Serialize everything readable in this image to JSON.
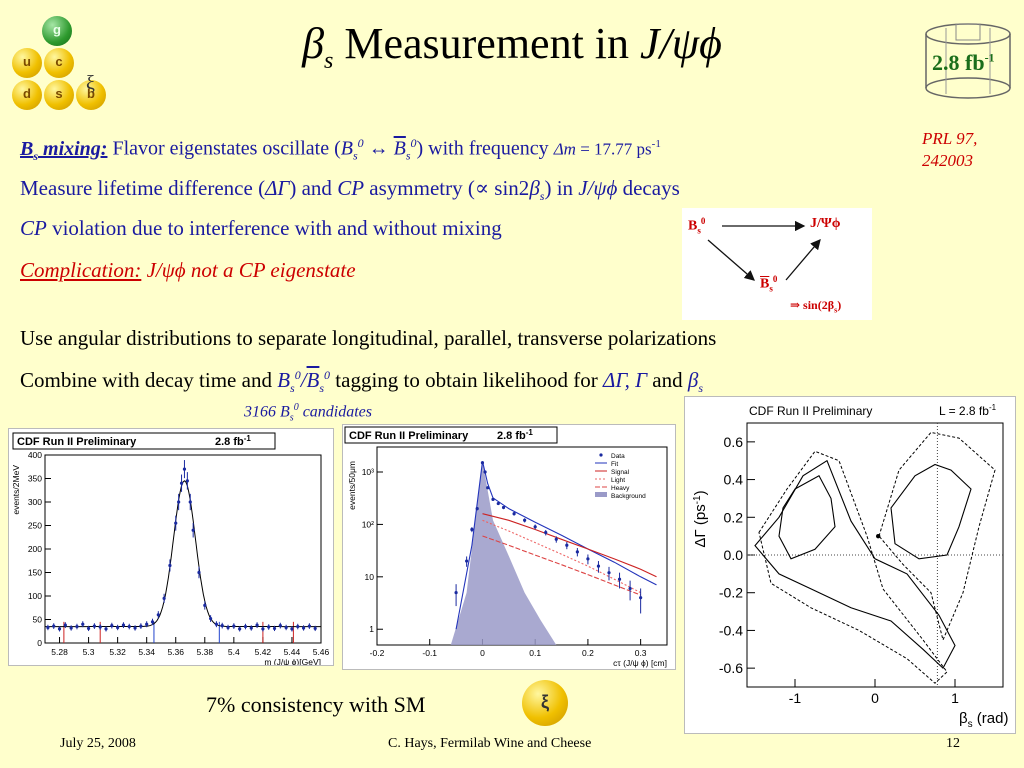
{
  "header": {
    "title_beta": "β",
    "title_sub": "s",
    "title_mid": " Measurement in ",
    "title_decay": "J/ψϕ",
    "lumi_badge": "2.8 fb",
    "lumi_sup": "-1"
  },
  "logo": {
    "quarks": [
      "g",
      "u",
      "c",
      "d",
      "s",
      "b"
    ],
    "squiggle": "ξ"
  },
  "reference": {
    "line1": "PRL 97,",
    "line2": "242003"
  },
  "bullets": {
    "b1_label": "B",
    "b1_label_sub": "s",
    "b1_label_tail": " mixing:",
    "b1_text_a": " Flavor eigenstates oscillate (",
    "b1_bs": "B",
    "b1_bs_sub": "s",
    "b1_bs_sup": "0",
    "b1_arrow": " ↔ ",
    "b1_bsbar": "B",
    "b1_bsbar_sub": "s",
    "b1_bsbar_sup": "0",
    "b1_text_b": ") with frequency ",
    "b1_dm": "Δm",
    "b1_value": " = 17.77 ps",
    "b1_value_sup": "-1",
    "b2_a": "Measure lifetime difference (",
    "b2_dg": "ΔΓ",
    "b2_b": ") and ",
    "b2_cp": "CP",
    "b2_c": " asymmetry (∝ sin2",
    "b2_beta": "β",
    "b2_beta_sub": "s",
    "b2_d": ") in ",
    "b2_decay": "J/ψϕ",
    "b2_e": " decays",
    "b3_cp": "CP",
    "b3_text": " violation due to interference with and without mixing",
    "b4_label": "Complication:",
    "b4_text": " J/ψϕ not a CP eigenstate",
    "b5": "Use angular distributions to separate longitudinal, parallel, transverse polarizations",
    "b6_a": "Combine with decay time and ",
    "b6_bs": "B",
    "b6_bs_sub": "s",
    "b6_bs_sup": "0",
    "b6_slash": "/",
    "b6_bsbar": "B",
    "b6_bsbar_sub": "s",
    "b6_bsbar_sup": "0",
    "b6_b": " tagging to obtain likelihood for ",
    "b6_params": "ΔΓ, Γ",
    "b6_and": " and ",
    "b6_beta": "β",
    "b6_beta_sub": "s",
    "candidates": "3166 B",
    "candidates_sub": "s",
    "candidates_sup": "0",
    "candidates_tail": " candidates"
  },
  "diagram": {
    "bs": "B",
    "bs_sub": "s",
    "bs_sup": "0",
    "jpsiphi": "J/Ψϕ",
    "bsbar": "B",
    "bsbar_sub": "s",
    "bsbar_sup": "0",
    "implies": "⇒ sin(2β",
    "implies_sub": "s",
    "implies_tail": ")"
  },
  "chart_data": [
    {
      "type": "scatter",
      "title": "CDF Run II Preliminary",
      "lumi": "2.8 fb",
      "lumi_sup": "-1",
      "xlabel": "m (J/ψ ϕ)[GeV]",
      "ylabel": "events/2MeV",
      "xlim": [
        5.27,
        5.46
      ],
      "ylim": [
        0,
        400
      ],
      "xticks": [
        "5.28",
        "5.3",
        "5.32",
        "5.34",
        "5.36",
        "5.38",
        "5.4",
        "5.42",
        "5.44",
        "5.46"
      ],
      "yticks": [
        "0",
        "50",
        "100",
        "150",
        "200",
        "250",
        "300",
        "350",
        "400"
      ],
      "fit": {
        "peak_mass": 5.366,
        "peak_height": 345,
        "background": 35
      },
      "sideband_lines": [
        5.283,
        5.308,
        5.345,
        5.39,
        5.42,
        5.441
      ],
      "x": [
        5.272,
        5.276,
        5.28,
        5.284,
        5.288,
        5.292,
        5.296,
        5.3,
        5.304,
        5.308,
        5.312,
        5.316,
        5.32,
        5.324,
        5.328,
        5.332,
        5.336,
        5.34,
        5.344,
        5.348,
        5.352,
        5.356,
        5.36,
        5.362,
        5.364,
        5.366,
        5.368,
        5.37,
        5.372,
        5.376,
        5.38,
        5.384,
        5.388,
        5.392,
        5.396,
        5.4,
        5.404,
        5.408,
        5.412,
        5.416,
        5.42,
        5.424,
        5.428,
        5.432,
        5.436,
        5.44,
        5.444,
        5.448,
        5.452,
        5.456
      ],
      "y": [
        33,
        36,
        30,
        38,
        32,
        35,
        40,
        31,
        36,
        34,
        30,
        37,
        33,
        38,
        35,
        32,
        36,
        40,
        45,
        60,
        95,
        165,
        255,
        300,
        340,
        370,
        345,
        300,
        240,
        150,
        80,
        52,
        40,
        37,
        33,
        36,
        30,
        35,
        32,
        38,
        30,
        34,
        31,
        37,
        33,
        30,
        35,
        32,
        36,
        31
      ]
    },
    {
      "type": "line",
      "title": "CDF Run II Preliminary",
      "lumi": "2.8 fb",
      "lumi_sup": "-1",
      "xlabel": "cτ (J/ψ ϕ) [cm]",
      "ylabel": "events/50μm",
      "log_y": true,
      "xlim": [
        -0.2,
        0.35
      ],
      "ylim": [
        0.5,
        3000
      ],
      "xticks": [
        "-0.2",
        "-0.1",
        "0",
        "0.1",
        "0.2",
        "0.3"
      ],
      "yticks": [
        "1",
        "10",
        "10²",
        "10³"
      ],
      "legend": [
        "Data",
        "Fit",
        "Signal",
        "Light",
        "Heavy",
        "Background"
      ],
      "series": [
        {
          "name": "Data",
          "x": [
            -0.05,
            -0.03,
            -0.02,
            -0.01,
            0,
            0.005,
            0.01,
            0.02,
            0.03,
            0.04,
            0.06,
            0.08,
            0.1,
            0.12,
            0.14,
            0.16,
            0.18,
            0.2,
            0.22,
            0.24,
            0.26,
            0.28,
            0.3
          ],
          "y": [
            5,
            20,
            80,
            200,
            1500,
            1000,
            500,
            300,
            250,
            210,
            160,
            120,
            90,
            70,
            52,
            40,
            30,
            22,
            16,
            12,
            9,
            6,
            4
          ]
        },
        {
          "name": "Fit",
          "x": [
            -0.05,
            -0.02,
            0,
            0.01,
            0.02,
            0.05,
            0.1,
            0.15,
            0.2,
            0.25,
            0.3,
            0.33
          ],
          "y": [
            1,
            40,
            1600,
            600,
            320,
            200,
            110,
            62,
            34,
            19,
            10,
            7
          ]
        },
        {
          "name": "Signal",
          "x": [
            0,
            0.05,
            0.1,
            0.15,
            0.2,
            0.25,
            0.3,
            0.33
          ],
          "y": [
            160,
            120,
            80,
            52,
            34,
            22,
            14,
            10
          ]
        },
        {
          "name": "Light",
          "x": [
            0,
            0.05,
            0.1,
            0.15,
            0.2,
            0.25,
            0.3
          ],
          "y": [
            120,
            75,
            45,
            27,
            16,
            9,
            5
          ]
        },
        {
          "name": "Heavy",
          "x": [
            0,
            0.05,
            0.1,
            0.15,
            0.2,
            0.25,
            0.3
          ],
          "y": [
            60,
            40,
            26,
            17,
            11,
            7,
            4.5
          ]
        },
        {
          "name": "Background",
          "x": [
            -0.06,
            -0.03,
            0,
            0.02,
            0.05,
            0.08,
            0.11,
            0.14
          ],
          "y": [
            0.5,
            5,
            1600,
            120,
            25,
            5,
            1.5,
            0.5
          ]
        }
      ]
    },
    {
      "type": "line",
      "title": "CDF Run II Preliminary",
      "lumi": "L = 2.8 fb",
      "lumi_sup": "-1",
      "xlabel": "β",
      "xlabel_sub": "s",
      "xlabel_tail": " (rad)",
      "ylabel": "ΔΓ (ps",
      "ylabel_sup": "-1",
      "ylabel_tail": ")",
      "xlim": [
        -1.6,
        1.6
      ],
      "ylim": [
        -0.7,
        0.7
      ],
      "xticks": [
        "-1",
        "0",
        "1"
      ],
      "yticks": [
        "0.6",
        "0.4",
        "0.2",
        "0.0",
        "-0.2",
        "-0.4",
        "-0.6"
      ],
      "sm_point": [
        0.04,
        0.1
      ]
    }
  ],
  "bottom": {
    "consistency": "7% consistency with SM"
  },
  "footer": {
    "date": "July 25, 2008",
    "author": "C. Hays, Fermilab Wine and Cheese",
    "page": "12"
  }
}
